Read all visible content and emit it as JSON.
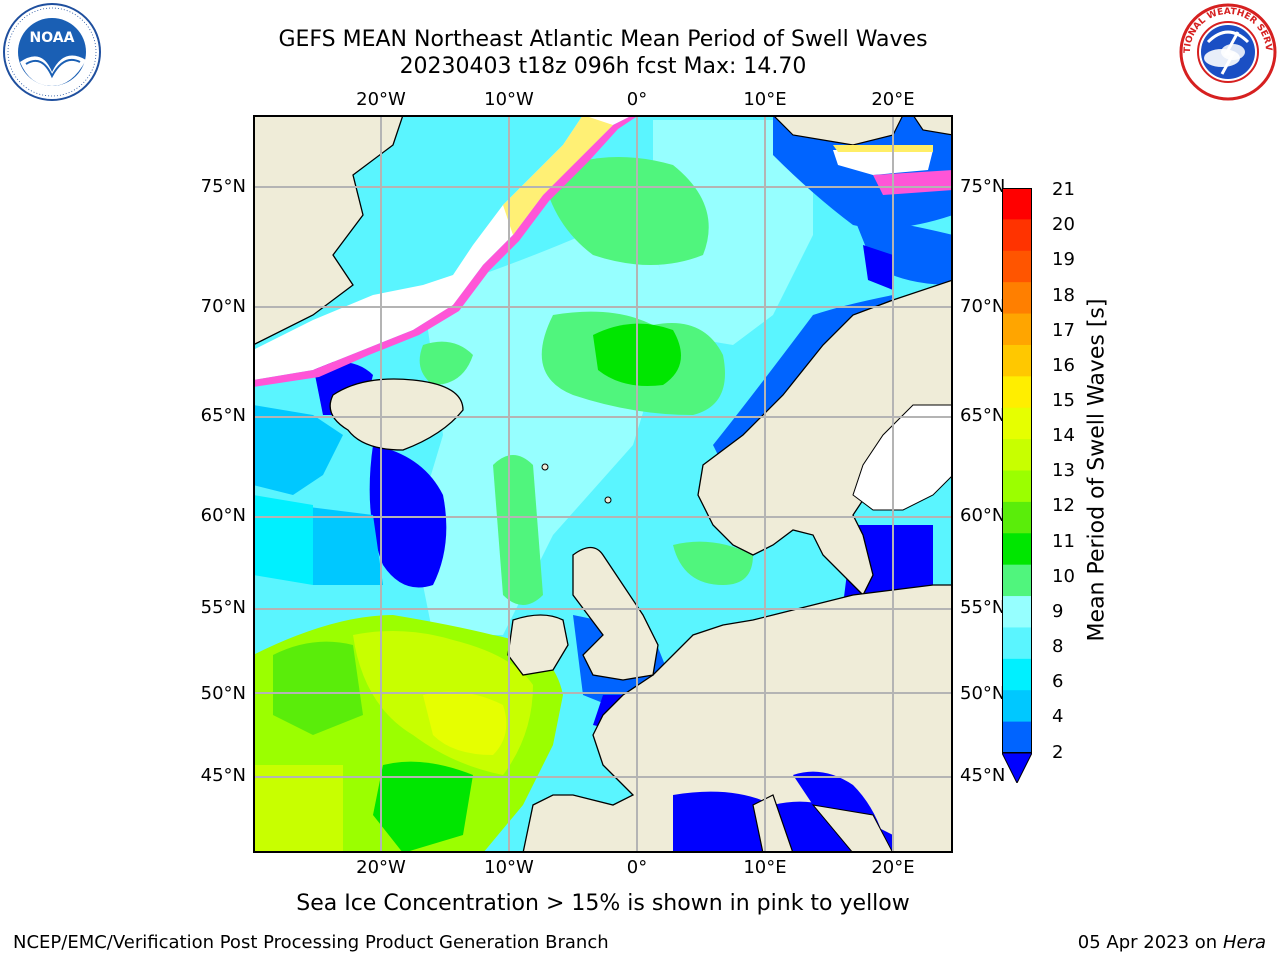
{
  "header": {
    "title_line1": "GEFS MEAN Northeast Atlantic Mean Period of Swell Waves",
    "title_line2": "20230403 t18z 096h fcst   Max: 14.70"
  },
  "logos": {
    "left": {
      "name": "noaa-logo",
      "text": "NOAA"
    },
    "right": {
      "name": "nws-logo",
      "text": "NATIONAL WEATHER SERVICE"
    }
  },
  "map": {
    "lon_labels": [
      "20°W",
      "10°W",
      "0°",
      "10°E",
      "20°E"
    ],
    "lat_labels_left": [
      "75°N",
      "70°N",
      "65°N",
      "60°N",
      "55°N",
      "50°N",
      "45°N"
    ],
    "lat_labels_right": [
      "75°N",
      "70°N",
      "65°N",
      "60°N",
      "55°N",
      "50°N",
      "45°N"
    ],
    "colors": {
      "land": "#efecd8",
      "grid": "#b4b4b4",
      "coast": "#000000",
      "ice_pink": "#ff55d7",
      "ice_yellow": "#ffee66"
    }
  },
  "colorbar": {
    "ticks": [
      "21",
      "20",
      "19",
      "18",
      "17",
      "16",
      "15",
      "14",
      "13",
      "12",
      "11",
      "10",
      "9",
      "8",
      "6",
      "4",
      "2"
    ],
    "label": "Mean Period of Swell Waves [s]",
    "colors": [
      "#ff0000",
      "#ff3300",
      "#ff5500",
      "#ff7f00",
      "#ffa500",
      "#ffc800",
      "#ffee00",
      "#e6ff00",
      "#c8ff00",
      "#9bff00",
      "#5aed0a",
      "#00e600",
      "#50f57d",
      "#96ffff",
      "#5af5ff",
      "#00f0ff",
      "#00c8ff",
      "#0064ff"
    ],
    "under_color": "#0000ff"
  },
  "footer": {
    "note": "Sea Ice Concentration > 15% is shown in pink to yellow",
    "left": "NCEP/EMC/Verification Post Processing Product Generation Branch",
    "right_date": "05 Apr 2023 on",
    "right_host": "Hera"
  }
}
